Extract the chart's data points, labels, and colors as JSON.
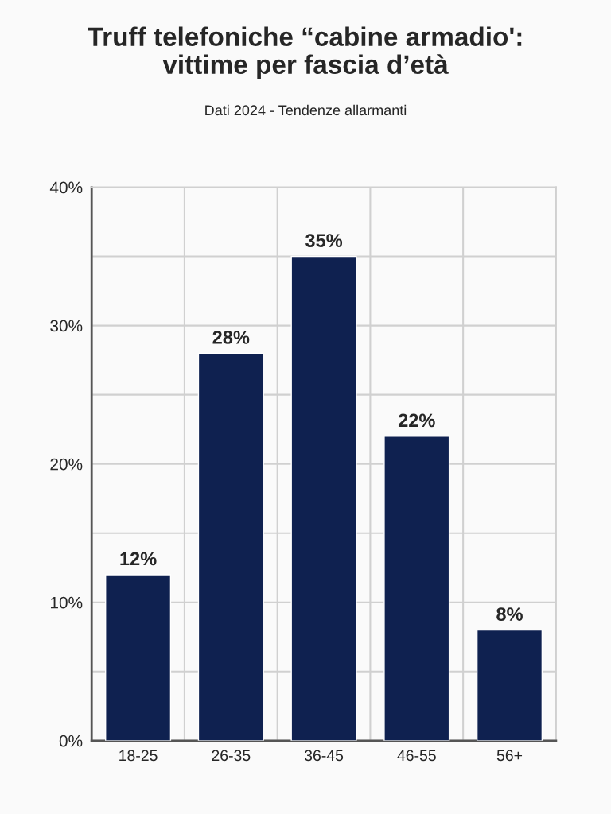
{
  "chart_data": {
    "type": "bar",
    "title": "Truff telefoniche “cabine armadio':\nvittime per fascia d’età",
    "subtitle": "Dati 2024 - Tendenze allarmanti",
    "categories": [
      "18-25",
      "26-35",
      "36-45",
      "46-55",
      "56+"
    ],
    "values": [
      12,
      28,
      35,
      22,
      8
    ],
    "color": "#0f2150",
    "value_labels": [
      "12%",
      "28%",
      "35%",
      "22%",
      "8%"
    ],
    "ylim": [
      0,
      40
    ],
    "yticks": [
      {
        "value": 0,
        "label": "0%"
      },
      {
        "value": 5,
        "label": null
      },
      {
        "value": 10,
        "label": "10%"
      },
      {
        "value": 15,
        "label": null
      },
      {
        "value": 20,
        "label": "20%"
      },
      {
        "value": 25,
        "label": null
      },
      {
        "value": 30,
        "label": "30%"
      },
      {
        "value": 35,
        "label": null
      },
      {
        "value": 40,
        "label": "40%"
      }
    ],
    "grid": true
  }
}
